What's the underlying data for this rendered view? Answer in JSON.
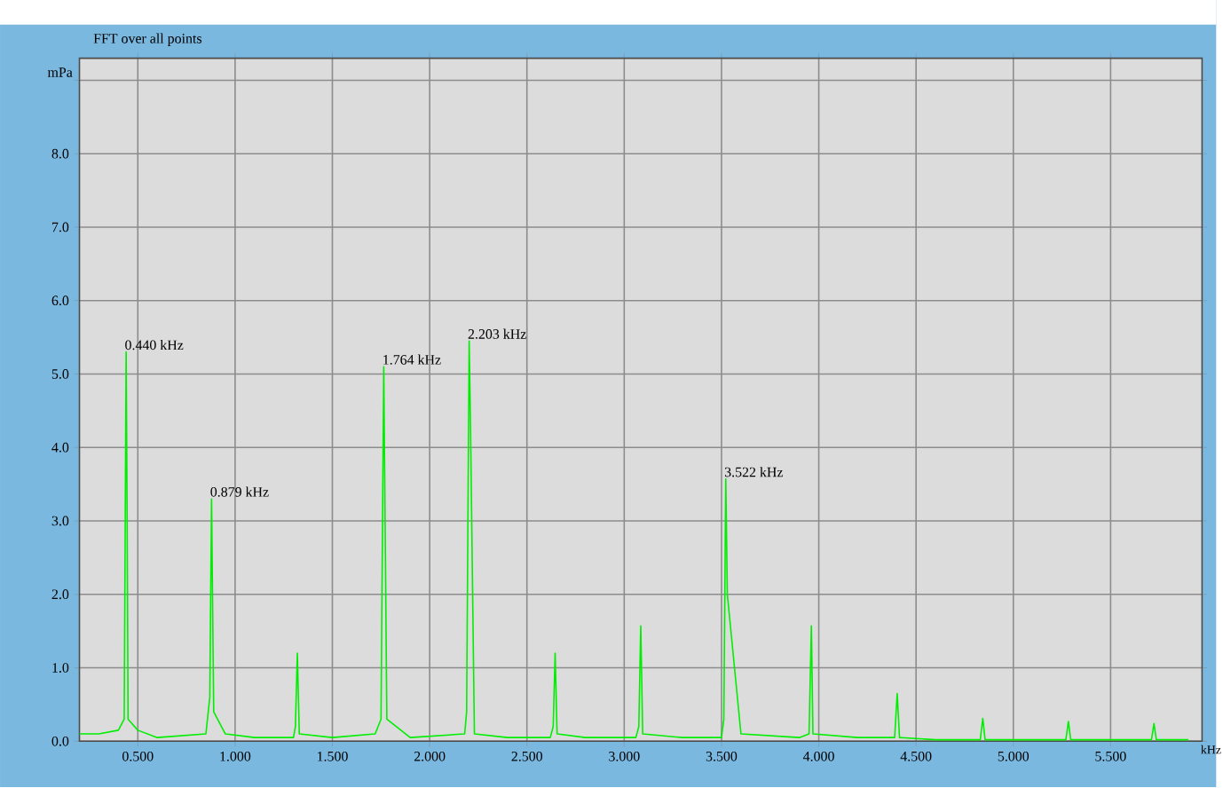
{
  "chart_data": {
    "type": "line",
    "title": "FFT over all points",
    "xlabel": "kHz",
    "ylabel": "mPa",
    "x": [
      0.2,
      0.3,
      0.4,
      0.43,
      0.44,
      0.445,
      0.45,
      0.5,
      0.6,
      0.85,
      0.87,
      0.879,
      0.89,
      0.95,
      1.1,
      1.3,
      1.31,
      1.32,
      1.33,
      1.5,
      1.72,
      1.75,
      1.764,
      1.78,
      1.9,
      2.18,
      2.19,
      2.203,
      2.21,
      2.23,
      2.4,
      2.62,
      2.635,
      2.645,
      2.655,
      2.8,
      3.06,
      3.075,
      3.085,
      3.095,
      3.3,
      3.5,
      3.512,
      3.522,
      3.53,
      3.6,
      3.9,
      3.95,
      3.962,
      3.97,
      4.2,
      4.39,
      4.403,
      4.415,
      4.6,
      4.83,
      4.843,
      4.855,
      5.1,
      5.27,
      5.283,
      5.295,
      5.5,
      5.71,
      5.723,
      5.735,
      5.9
    ],
    "values": [
      0.1,
      0.1,
      0.15,
      0.3,
      5.3,
      3.1,
      0.3,
      0.15,
      0.05,
      0.1,
      0.6,
      3.3,
      0.4,
      0.1,
      0.05,
      0.05,
      0.2,
      1.2,
      0.1,
      0.05,
      0.1,
      0.3,
      5.1,
      0.3,
      0.05,
      0.1,
      0.4,
      5.45,
      4.3,
      0.1,
      0.05,
      0.05,
      0.2,
      1.2,
      0.1,
      0.05,
      0.05,
      0.2,
      1.57,
      0.1,
      0.05,
      0.05,
      0.3,
      3.57,
      2.0,
      0.1,
      0.05,
      0.1,
      1.57,
      0.1,
      0.05,
      0.05,
      0.65,
      0.05,
      0.02,
      0.02,
      0.31,
      0.02,
      0.02,
      0.02,
      0.27,
      0.02,
      0.02,
      0.02,
      0.24,
      0.02,
      0.02
    ],
    "color": "#00ee00",
    "xlim": [
      0.2,
      5.97
    ],
    "ylim": [
      0,
      9.3
    ],
    "xticks": [
      {
        "value": 0.5,
        "label": "0.500"
      },
      {
        "value": 1.0,
        "label": "1.000"
      },
      {
        "value": 1.5,
        "label": "1.500"
      },
      {
        "value": 2.0,
        "label": "2.000"
      },
      {
        "value": 2.5,
        "label": "2.500"
      },
      {
        "value": 3.0,
        "label": "3.000"
      },
      {
        "value": 3.5,
        "label": "3.500"
      },
      {
        "value": 4.0,
        "label": "4.000"
      },
      {
        "value": 4.5,
        "label": "4.500"
      },
      {
        "value": 5.0,
        "label": "5.000"
      },
      {
        "value": 5.5,
        "label": "5.500"
      }
    ],
    "yticks": [
      {
        "value": 0,
        "label": "0.0"
      },
      {
        "value": 1,
        "label": "1.0"
      },
      {
        "value": 2,
        "label": "2.0"
      },
      {
        "value": 3,
        "label": "3.0"
      },
      {
        "value": 4,
        "label": "4.0"
      },
      {
        "value": 5,
        "label": "5.0"
      },
      {
        "value": 6,
        "label": "6.0"
      },
      {
        "value": 7,
        "label": "7.0"
      },
      {
        "value": 8,
        "label": "8.0"
      },
      {
        "value": 9,
        "label": null
      }
    ],
    "grid": true,
    "annotations": [
      {
        "text": "0.440 kHz",
        "x": 0.44,
        "y": 5.3
      },
      {
        "text": "0.879 kHz",
        "x": 0.879,
        "y": 3.3
      },
      {
        "text": "1.764 kHz",
        "x": 1.764,
        "y": 5.1
      },
      {
        "text": "2.203 kHz",
        "x": 2.203,
        "y": 5.45
      },
      {
        "text": "3.522 kHz",
        "x": 3.522,
        "y": 3.57
      }
    ]
  }
}
